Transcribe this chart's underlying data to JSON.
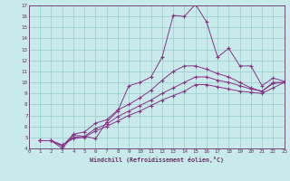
{
  "xlabel": "Windchill (Refroidissement éolien,°C)",
  "xlim": [
    0,
    23
  ],
  "ylim": [
    4,
    17
  ],
  "xticks": [
    0,
    1,
    2,
    3,
    4,
    5,
    6,
    7,
    8,
    9,
    10,
    11,
    12,
    13,
    14,
    15,
    16,
    17,
    18,
    19,
    20,
    21,
    22,
    23
  ],
  "yticks": [
    4,
    5,
    6,
    7,
    8,
    9,
    10,
    11,
    12,
    13,
    14,
    15,
    16,
    17
  ],
  "bg_color": "#c8eaea",
  "line_color": "#883388",
  "grid_color": "#99cccc",
  "axis_color": "#663366",
  "series": [
    [
      4.7,
      4.7,
      4.0,
      5.2,
      5.1,
      4.9,
      6.4,
      7.4,
      9.7,
      10.0,
      10.5,
      12.3,
      16.1,
      16.0,
      17.1,
      15.5,
      12.3,
      13.1,
      11.5,
      11.5,
      9.7,
      10.4,
      10.1
    ],
    [
      4.7,
      4.7,
      4.2,
      5.3,
      5.5,
      6.3,
      6.6,
      7.5,
      8.0,
      8.6,
      9.3,
      10.2,
      11.0,
      11.5,
      11.5,
      11.2,
      10.8,
      10.5,
      10.0,
      9.5,
      9.2,
      10.0,
      10.0
    ],
    [
      4.7,
      4.7,
      4.3,
      5.0,
      5.1,
      5.8,
      6.2,
      6.9,
      7.4,
      7.9,
      8.4,
      9.0,
      9.5,
      10.0,
      10.5,
      10.5,
      10.2,
      10.0,
      9.7,
      9.4,
      9.2,
      9.9,
      10.0
    ],
    [
      4.7,
      4.7,
      4.3,
      4.9,
      5.0,
      5.6,
      6.0,
      6.5,
      7.0,
      7.4,
      7.9,
      8.4,
      8.8,
      9.2,
      9.8,
      9.8,
      9.6,
      9.4,
      9.2,
      9.1,
      9.0,
      9.5,
      10.0
    ]
  ]
}
